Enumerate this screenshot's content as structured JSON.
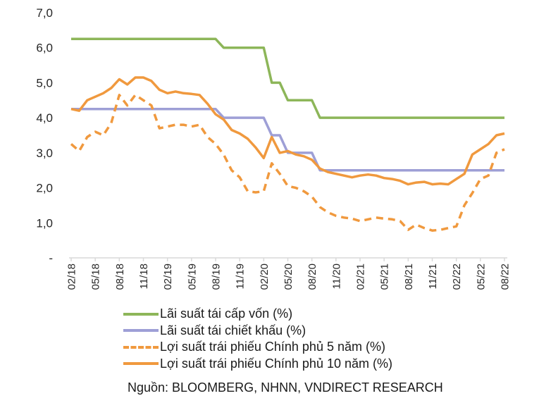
{
  "chart_data": {
    "type": "line",
    "title": "",
    "xlabel": "",
    "ylabel": "",
    "ylim": [
      0,
      7
    ],
    "yticks": [
      {
        "value": 0,
        "label": "-"
      },
      {
        "value": 1,
        "label": "1,0"
      },
      {
        "value": 2,
        "label": "2,0"
      },
      {
        "value": 3,
        "label": "3,0"
      },
      {
        "value": 4,
        "label": "4,0"
      },
      {
        "value": 5,
        "label": "5,0"
      },
      {
        "value": 6,
        "label": "6,0"
      },
      {
        "value": 7,
        "label": "7,0"
      }
    ],
    "x_start": "02/18",
    "x_end": "08/22",
    "x_tick_labels": [
      "02/18",
      "05/18",
      "08/18",
      "11/18",
      "02/19",
      "05/19",
      "08/19",
      "11/19",
      "02/20",
      "05/20",
      "08/20",
      "11/20",
      "02/21",
      "05/21",
      "08/21",
      "11/21",
      "02/22",
      "05/22",
      "08/22"
    ],
    "grid": false,
    "legend_position": "bottom",
    "series": [
      {
        "name": "Lãi suất tái cấp vốn (%)",
        "color": "#8db659",
        "style": "solid",
        "values": [
          6.25,
          6.25,
          6.25,
          6.25,
          6.25,
          6.25,
          6.25,
          6.25,
          6.25,
          6.25,
          6.25,
          6.25,
          6.25,
          6.25,
          6.25,
          6.25,
          6.25,
          6.25,
          6.25,
          6.0,
          6.0,
          6.0,
          6.0,
          6.0,
          6.0,
          5.0,
          5.0,
          4.5,
          4.5,
          4.5,
          4.5,
          4.0,
          4.0,
          4.0,
          4.0,
          4.0,
          4.0,
          4.0,
          4.0,
          4.0,
          4.0,
          4.0,
          4.0,
          4.0,
          4.0,
          4.0,
          4.0,
          4.0,
          4.0,
          4.0,
          4.0,
          4.0,
          4.0,
          4.0,
          4.0
        ]
      },
      {
        "name": "Lãi suất tái chiết khấu (%)",
        "color": "#9e9fd6",
        "style": "solid",
        "values": [
          4.25,
          4.25,
          4.25,
          4.25,
          4.25,
          4.25,
          4.25,
          4.25,
          4.25,
          4.25,
          4.25,
          4.25,
          4.25,
          4.25,
          4.25,
          4.25,
          4.25,
          4.25,
          4.25,
          4.0,
          4.0,
          4.0,
          4.0,
          4.0,
          4.0,
          3.5,
          3.5,
          3.0,
          3.0,
          3.0,
          3.0,
          2.5,
          2.5,
          2.5,
          2.5,
          2.5,
          2.5,
          2.5,
          2.5,
          2.5,
          2.5,
          2.5,
          2.5,
          2.5,
          2.5,
          2.5,
          2.5,
          2.5,
          2.5,
          2.5,
          2.5,
          2.5,
          2.5,
          2.5,
          2.5
        ]
      },
      {
        "name": "Lợi suất trái phiếu Chính phủ 5 năm (%)",
        "color": "#f0993e",
        "style": "dashed",
        "values": [
          3.25,
          3.05,
          3.45,
          3.6,
          3.5,
          3.85,
          4.65,
          4.35,
          4.65,
          4.5,
          4.35,
          3.7,
          3.75,
          3.8,
          3.8,
          3.75,
          3.8,
          3.45,
          3.25,
          2.95,
          2.5,
          2.3,
          1.9,
          1.87,
          1.9,
          2.7,
          2.4,
          2.05,
          2.0,
          1.9,
          1.75,
          1.45,
          1.3,
          1.2,
          1.15,
          1.12,
          1.05,
          1.1,
          1.15,
          1.12,
          1.1,
          1.05,
          0.8,
          0.95,
          0.85,
          0.78,
          0.8,
          0.85,
          0.9,
          1.5,
          1.85,
          2.25,
          2.35,
          3.0,
          3.1
        ]
      },
      {
        "name": "Lợi suất trái phiếu Chính phủ 10 năm (%)",
        "color": "#f0993e",
        "style": "solid",
        "values": [
          4.25,
          4.2,
          4.5,
          4.6,
          4.7,
          4.85,
          5.1,
          4.95,
          5.15,
          5.15,
          5.05,
          4.8,
          4.7,
          4.75,
          4.7,
          4.68,
          4.65,
          4.4,
          4.1,
          3.95,
          3.65,
          3.55,
          3.4,
          3.15,
          2.85,
          3.45,
          3.0,
          3.05,
          2.95,
          2.9,
          2.8,
          2.55,
          2.45,
          2.4,
          2.35,
          2.3,
          2.35,
          2.38,
          2.35,
          2.28,
          2.25,
          2.2,
          2.1,
          2.15,
          2.17,
          2.1,
          2.12,
          2.1,
          2.25,
          2.4,
          2.95,
          3.1,
          3.25,
          3.5,
          3.55
        ]
      }
    ]
  },
  "legend": [
    {
      "label": "Lãi suất tái cấp vốn (%)"
    },
    {
      "label": "Lãi suất tái chiết khấu (%)"
    },
    {
      "label": "Lợi suất trái phiếu Chính phủ 5 năm (%)"
    },
    {
      "label": "Lợi suất trái phiếu Chính phủ 10 năm (%)"
    }
  ],
  "source": "Nguồn: BLOOMBERG, NHNN, VNDIRECT RESEARCH"
}
